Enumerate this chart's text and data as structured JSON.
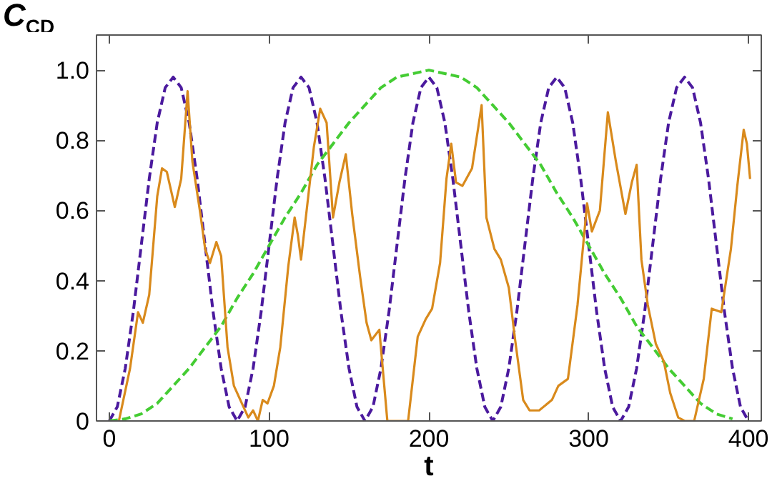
{
  "chart_data": {
    "type": "line",
    "xlabel": "t",
    "ylabel": "C$_{CD}$",
    "xlim": [
      -8,
      408
    ],
    "ylim": [
      0,
      1.1
    ],
    "xticks": [
      0,
      100,
      200,
      300,
      400
    ],
    "yticks": [
      0,
      0.2,
      0.4,
      0.6,
      0.8,
      {
        "value": 1,
        "label": "1.0"
      }
    ],
    "grid": false,
    "marker": "none",
    "series": [
      {
        "color": "#4b1a9e",
        "line_style": "dashed",
        "x": [
          0,
          5,
          10,
          15,
          20,
          25,
          30,
          35,
          40,
          45,
          50,
          55,
          60,
          65,
          70,
          75,
          80,
          85,
          90,
          95,
          100,
          105,
          110,
          115,
          120,
          125,
          130,
          135,
          140,
          145,
          150,
          155,
          160,
          165,
          170,
          175,
          180,
          185,
          190,
          195,
          200,
          205,
          210,
          215,
          220,
          225,
          230,
          235,
          240,
          245,
          250,
          255,
          260,
          265,
          270,
          275,
          280,
          285,
          290,
          295,
          300,
          305,
          310,
          315,
          320,
          325,
          330,
          335,
          340,
          345,
          350,
          355,
          360,
          365,
          370,
          375,
          380,
          385,
          390,
          395,
          400
        ],
        "values": [
          0,
          0.04,
          0.15,
          0.31,
          0.5,
          0.69,
          0.85,
          0.95,
          0.98,
          0.95,
          0.85,
          0.69,
          0.5,
          0.31,
          0.15,
          0.04,
          0,
          0.04,
          0.15,
          0.31,
          0.5,
          0.69,
          0.85,
          0.95,
          0.98,
          0.95,
          0.85,
          0.69,
          0.5,
          0.31,
          0.15,
          0.04,
          0,
          0.04,
          0.15,
          0.31,
          0.5,
          0.69,
          0.85,
          0.95,
          0.98,
          0.95,
          0.85,
          0.69,
          0.5,
          0.31,
          0.15,
          0.04,
          0,
          0.04,
          0.15,
          0.31,
          0.5,
          0.69,
          0.85,
          0.95,
          0.98,
          0.95,
          0.85,
          0.69,
          0.5,
          0.31,
          0.15,
          0.04,
          0,
          0.04,
          0.15,
          0.31,
          0.5,
          0.69,
          0.85,
          0.95,
          0.98,
          0.95,
          0.85,
          0.69,
          0.5,
          0.31,
          0.15,
          0.04,
          0
        ]
      },
      {
        "color": "#44cc33",
        "line_style": "dashed",
        "x": [
          0,
          10,
          20,
          30,
          40,
          50,
          60,
          70,
          80,
          90,
          100,
          110,
          120,
          130,
          140,
          150,
          160,
          170,
          180,
          190,
          200,
          210,
          220,
          230,
          240,
          250,
          260,
          270,
          280,
          290,
          300,
          310,
          320,
          330,
          340,
          350,
          360,
          370,
          380,
          390
        ],
        "values": [
          0,
          0.006,
          0.02,
          0.05,
          0.1,
          0.15,
          0.21,
          0.27,
          0.35,
          0.42,
          0.5,
          0.58,
          0.65,
          0.73,
          0.79,
          0.85,
          0.9,
          0.95,
          0.98,
          0.99,
          1.0,
          0.99,
          0.98,
          0.95,
          0.9,
          0.85,
          0.79,
          0.73,
          0.65,
          0.58,
          0.5,
          0.42,
          0.35,
          0.27,
          0.21,
          0.15,
          0.1,
          0.05,
          0.02,
          0.006
        ]
      },
      {
        "color": "#d98a1c",
        "line_style": "solid",
        "x": [
          6,
          13,
          18,
          21,
          25,
          30,
          33,
          36,
          41,
          45,
          49,
          52,
          57,
          60,
          63,
          67,
          70,
          74,
          78,
          82,
          87,
          90,
          93,
          96,
          99,
          103,
          107,
          112,
          116,
          118,
          120,
          124,
          128,
          132,
          136,
          140,
          144,
          148,
          152,
          157,
          161,
          164,
          169,
          174,
          187,
          189,
          193,
          198,
          202,
          207,
          211,
          214,
          217,
          221,
          227,
          233,
          236,
          241,
          245,
          250,
          254,
          259,
          263,
          269,
          277,
          281,
          287,
          293,
          299,
          302,
          307,
          312,
          317,
          323,
          327,
          330,
          333,
          337,
          342,
          347,
          351,
          356,
          360,
          366,
          372,
          377,
          383,
          389,
          393,
          397,
          399,
          401
        ],
        "values": [
          0,
          0.15,
          0.31,
          0.28,
          0.36,
          0.64,
          0.72,
          0.71,
          0.61,
          0.69,
          0.94,
          0.74,
          0.59,
          0.49,
          0.45,
          0.51,
          0.47,
          0.21,
          0.1,
          0.06,
          0.01,
          0.03,
          0,
          0.06,
          0.05,
          0.1,
          0.21,
          0.44,
          0.58,
          0.53,
          0.46,
          0.62,
          0.78,
          0.89,
          0.85,
          0.58,
          0.68,
          0.76,
          0.59,
          0.41,
          0.28,
          0.23,
          0.26,
          0,
          0,
          0.08,
          0.24,
          0.29,
          0.32,
          0.45,
          0.69,
          0.79,
          0.68,
          0.67,
          0.72,
          0.9,
          0.58,
          0.49,
          0.46,
          0.38,
          0.23,
          0.06,
          0.03,
          0.03,
          0.06,
          0.1,
          0.12,
          0.33,
          0.62,
          0.54,
          0.6,
          0.88,
          0.74,
          0.59,
          0.68,
          0.73,
          0.46,
          0.33,
          0.22,
          0.17,
          0.08,
          0.01,
          0,
          0,
          0.12,
          0.32,
          0.31,
          0.49,
          0.67,
          0.83,
          0.79,
          0.69
        ]
      }
    ]
  }
}
